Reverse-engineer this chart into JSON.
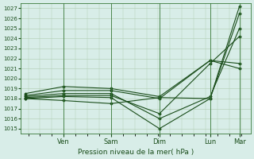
{
  "title": "",
  "xlabel": "Pression niveau de la mer( hPa )",
  "ylabel": "",
  "ylim": [
    1014.5,
    1027.5
  ],
  "yticks": [
    1015,
    1016,
    1017,
    1018,
    1019,
    1020,
    1021,
    1022,
    1023,
    1024,
    1025,
    1026,
    1027
  ],
  "day_labels": [
    "Ven",
    "Sam",
    "Dim",
    "Lun",
    "Mar"
  ],
  "day_positions": [
    0.17,
    0.38,
    0.595,
    0.82,
    0.95
  ],
  "bg_color": "#d8ede8",
  "line_color": "#1a4d1a",
  "grid_color": "#b0ccb0",
  "series": [
    {
      "x": [
        0.0,
        0.17,
        0.38,
        0.595,
        0.82,
        0.95
      ],
      "y": [
        1018.0,
        1018.2,
        1018.1,
        1015.0,
        1018.0,
        1026.5
      ]
    },
    {
      "x": [
        0.0,
        0.17,
        0.38,
        0.595,
        0.82,
        0.95
      ],
      "y": [
        1018.2,
        1018.5,
        1018.5,
        1016.0,
        1018.2,
        1025.0
      ]
    },
    {
      "x": [
        0.0,
        0.17,
        0.38,
        0.595,
        0.82,
        0.95
      ],
      "y": [
        1018.1,
        1018.3,
        1018.3,
        1016.5,
        1021.5,
        1024.2
      ]
    },
    {
      "x": [
        0.0,
        0.17,
        0.38,
        0.595,
        0.82,
        0.95
      ],
      "y": [
        1018.3,
        1018.8,
        1018.8,
        1018.0,
        1021.8,
        1021.5
      ]
    },
    {
      "x": [
        0.0,
        0.17,
        0.38,
        0.595,
        0.82,
        0.95
      ],
      "y": [
        1018.5,
        1019.2,
        1019.0,
        1018.2,
        1021.8,
        1021.0
      ]
    },
    {
      "x": [
        0.0,
        0.17,
        0.38,
        0.595,
        0.82,
        0.95
      ],
      "y": [
        1018.0,
        1017.8,
        1017.5,
        1018.1,
        1018.0,
        1027.2
      ]
    }
  ],
  "marker": "D",
  "marker_size": 1.5,
  "line_width": 0.8,
  "vline_positions": [
    0.17,
    0.38,
    0.595,
    0.82,
    0.95
  ],
  "vline_color": "#3a7a3a"
}
